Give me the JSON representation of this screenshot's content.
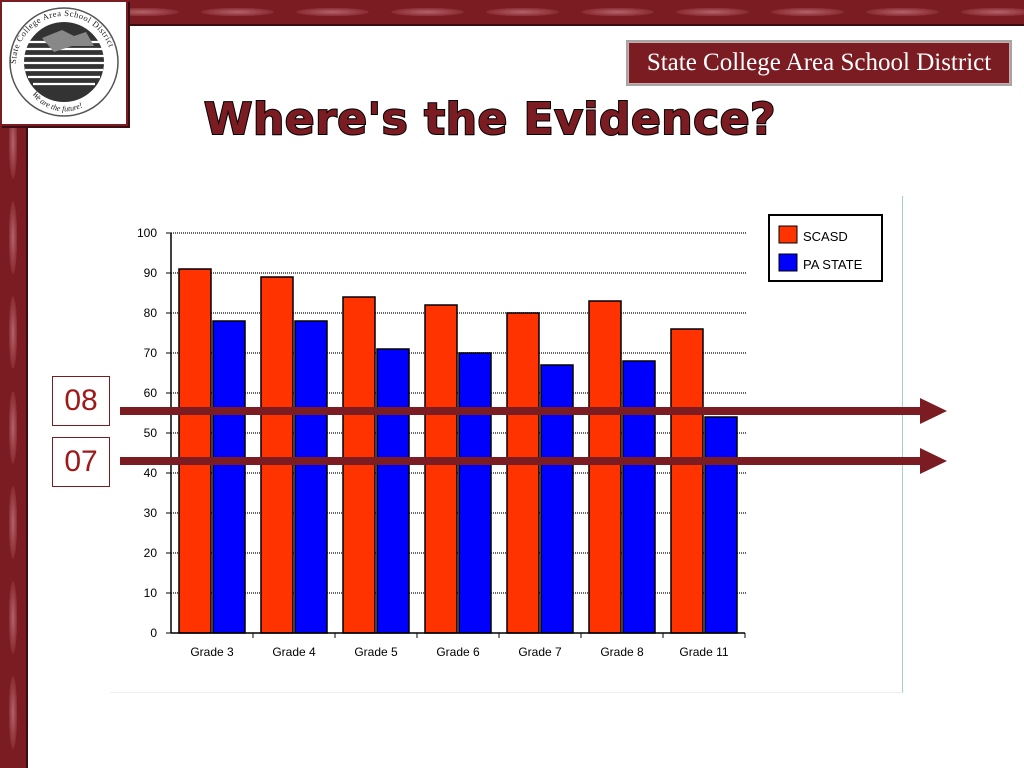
{
  "header": {
    "district_name": "State College Area School District",
    "logo_text": "State College Area School District",
    "logo_tagline": "We are the future!"
  },
  "title": "Where's the Evidence?",
  "markers": [
    {
      "label": "08",
      "value": 55.5
    },
    {
      "label": "07",
      "value": 43
    }
  ],
  "colors": {
    "maroon": "#7a1c22",
    "scasd": "#ff3300",
    "pa_state": "#0000ff"
  },
  "chart_data": {
    "type": "bar",
    "title": "",
    "xlabel": "",
    "ylabel": "",
    "categories": [
      "Grade 3",
      "Grade 4",
      "Grade 5",
      "Grade 6",
      "Grade 7",
      "Grade 8",
      "Grade 11"
    ],
    "series": [
      {
        "name": "SCASD",
        "color": "#ff3300",
        "values": [
          91,
          89,
          84,
          82,
          80,
          83,
          76
        ]
      },
      {
        "name": "PA STATE",
        "color": "#0000ff",
        "values": [
          78,
          78,
          71,
          70,
          67,
          68,
          54
        ]
      }
    ],
    "ylim": [
      0,
      100
    ],
    "yticks": [
      0,
      10,
      20,
      30,
      40,
      50,
      60,
      70,
      80,
      90,
      100
    ],
    "grid": true,
    "legend": "top-right"
  }
}
